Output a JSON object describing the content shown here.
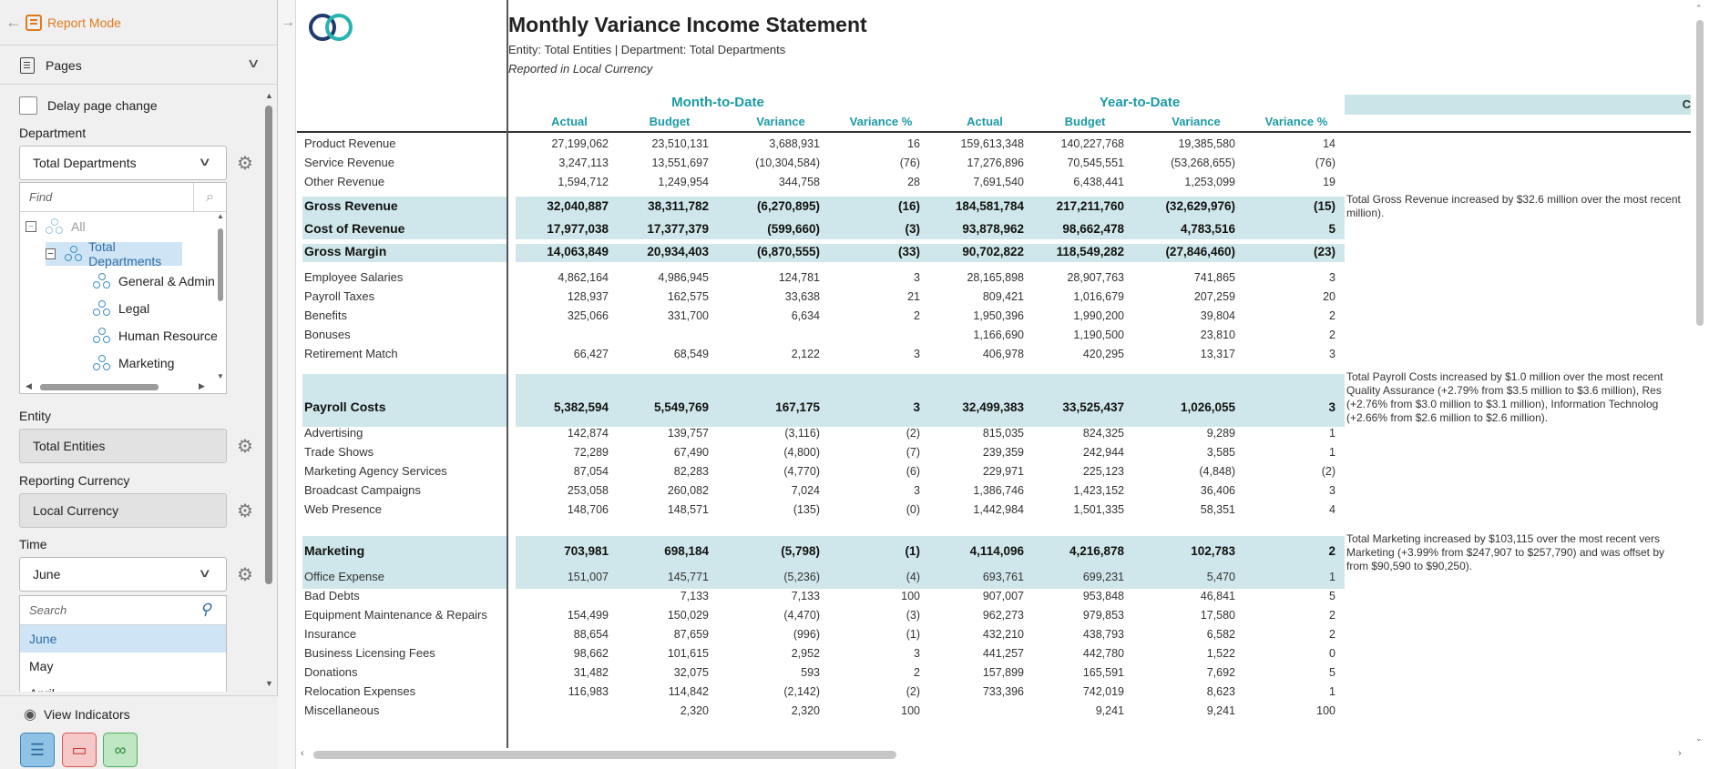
{
  "sidebar": {
    "report_mode_label": "Report Mode",
    "pages_label": "Pages",
    "delay_page_change_label": "Delay page change",
    "department_label": "Department",
    "department_value": "Total Departments",
    "find_placeholder": "Find",
    "tree": [
      {
        "label": "All",
        "toggle": "−"
      },
      {
        "label": "Total Departments",
        "toggle": "−"
      },
      {
        "label": "General & Admin"
      },
      {
        "label": "Legal"
      },
      {
        "label": "Human Resource"
      },
      {
        "label": "Marketing"
      }
    ],
    "entity_label": "Entity",
    "entity_value": "Total Entities",
    "reporting_currency_label": "Reporting Currency",
    "reporting_currency_value": "Local Currency",
    "time_label": "Time",
    "time_value": "June",
    "time_search_placeholder": "Search",
    "time_options": [
      "June",
      "May",
      "April"
    ],
    "view_indicators_label": "View Indicators"
  },
  "report": {
    "title": "Monthly Variance Income Statement",
    "subtitle": "Entity: Total Entities | Department: Total Departments",
    "currency_note": "Reported in Local Currency",
    "group_mtd": "Month-to-Date",
    "group_ytd": "Year-to-Date",
    "columns": [
      "Actual",
      "Budget",
      "Variance",
      "Variance %",
      "Actual",
      "Budget",
      "Variance",
      "Variance %"
    ],
    "comment_header": "C",
    "rows": [
      {
        "label": "Product Revenue",
        "v": [
          "27,199,062",
          "23,510,131",
          "3,688,931",
          "16",
          "159,613,348",
          "140,227,768",
          "19,385,580",
          "14"
        ]
      },
      {
        "label": "Service Revenue",
        "v": [
          "3,247,113",
          "13,551,697",
          "(10,304,584)",
          "(76)",
          "17,276,896",
          "70,545,551",
          "(53,268,655)",
          "(76)"
        ]
      },
      {
        "label": "Other Revenue",
        "v": [
          "1,594,712",
          "1,249,954",
          "344,758",
          "28",
          "7,691,540",
          "6,438,441",
          "1,253,099",
          "19"
        ]
      },
      {
        "label": "Gross Revenue",
        "bold": true,
        "v": [
          "32,040,887",
          "38,311,782",
          "(6,270,895)",
          "(16)",
          "184,581,784",
          "217,211,760",
          "(32,629,976)",
          "(15)"
        ],
        "comment": "Total Gross Revenue increased by $32.6 million over the most recent\nmillion)."
      },
      {
        "label": "Cost of Revenue",
        "bold": true,
        "v": [
          "17,977,038",
          "17,377,379",
          "(599,660)",
          "(3)",
          "93,878,962",
          "98,662,478",
          "4,783,516",
          "5"
        ]
      },
      {
        "label": "Gross Margin",
        "bold": true,
        "v": [
          "14,063,849",
          "20,934,403",
          "(6,870,555)",
          "(33)",
          "90,702,822",
          "118,549,282",
          "(27,846,460)",
          "(23)"
        ]
      },
      {
        "label": "Employee Salaries",
        "v": [
          "4,862,164",
          "4,986,945",
          "124,781",
          "3",
          "28,165,898",
          "28,907,763",
          "741,865",
          "3"
        ]
      },
      {
        "label": "Payroll Taxes",
        "v": [
          "128,937",
          "162,575",
          "33,638",
          "21",
          "809,421",
          "1,016,679",
          "207,259",
          "20"
        ]
      },
      {
        "label": "Benefits",
        "v": [
          "325,066",
          "331,700",
          "6,634",
          "2",
          "1,950,396",
          "1,990,200",
          "39,804",
          "2"
        ]
      },
      {
        "label": "Bonuses",
        "v": [
          "",
          "",
          "",
          "",
          "1,166,690",
          "1,190,500",
          "23,810",
          "2"
        ]
      },
      {
        "label": "Retirement Match",
        "v": [
          "66,427",
          "68,549",
          "2,122",
          "3",
          "406,978",
          "420,295",
          "13,317",
          "3"
        ]
      },
      {
        "label": "Payroll Costs",
        "bold": true,
        "v": [
          "5,382,594",
          "5,549,769",
          "167,175",
          "3",
          "32,499,383",
          "33,525,437",
          "1,026,055",
          "3"
        ],
        "comment": "Total Payroll Costs increased by $1.0 million over the most recent\nQuality Assurance (+2.79% from $3.5 million to $3.6 million), Res\n(+2.76% from $3.0 million to $3.1 million), Information Technolog\n(+2.66% from $2.6 million to $2.6 million)."
      },
      {
        "label": "Advertising",
        "v": [
          "142,874",
          "139,757",
          "(3,116)",
          "(2)",
          "815,035",
          "824,325",
          "9,289",
          "1"
        ]
      },
      {
        "label": "Trade Shows",
        "v": [
          "72,289",
          "67,490",
          "(4,800)",
          "(7)",
          "239,359",
          "242,944",
          "3,585",
          "1"
        ]
      },
      {
        "label": "Marketing Agency Services",
        "v": [
          "87,054",
          "82,283",
          "(4,770)",
          "(6)",
          "229,971",
          "225,123",
          "(4,848)",
          "(2)"
        ]
      },
      {
        "label": "Broadcast Campaigns",
        "v": [
          "253,058",
          "260,082",
          "7,024",
          "3",
          "1,386,746",
          "1,423,152",
          "36,406",
          "3"
        ]
      },
      {
        "label": "Web Presence",
        "v": [
          "148,706",
          "148,571",
          "(135)",
          "(0)",
          "1,442,984",
          "1,501,335",
          "58,351",
          "4"
        ]
      },
      {
        "label": "Marketing",
        "bold": true,
        "v": [
          "703,981",
          "698,184",
          "(5,798)",
          "(1)",
          "4,114,096",
          "4,216,878",
          "102,783",
          "2"
        ],
        "comment": "Total Marketing increased by $103,115 over the most recent vers\nMarketing (+3.99% from $247,907 to $257,790) and was offset by\nfrom $90,590 to $90,250)."
      },
      {
        "label": "Office Expense",
        "v": [
          "151,007",
          "145,771",
          "(5,236)",
          "(4)",
          "693,761",
          "699,231",
          "5,470",
          "1"
        ]
      },
      {
        "label": "Bad Debts",
        "v": [
          "",
          "7,133",
          "7,133",
          "100",
          "907,007",
          "953,848",
          "46,841",
          "5"
        ]
      },
      {
        "label": "Equipment Maintenance & Repairs",
        "v": [
          "154,499",
          "150,029",
          "(4,470)",
          "(3)",
          "962,273",
          "979,853",
          "17,580",
          "2"
        ]
      },
      {
        "label": "Insurance",
        "v": [
          "88,654",
          "87,659",
          "(996)",
          "(1)",
          "432,210",
          "438,793",
          "6,582",
          "2"
        ]
      },
      {
        "label": "Business Licensing Fees",
        "v": [
          "98,662",
          "101,615",
          "2,952",
          "3",
          "441,257",
          "442,780",
          "1,522",
          "0"
        ]
      },
      {
        "label": "Donations",
        "v": [
          "31,482",
          "32,075",
          "593",
          "2",
          "157,899",
          "165,591",
          "7,692",
          "5"
        ]
      },
      {
        "label": "Relocation Expenses",
        "v": [
          "116,983",
          "114,842",
          "(2,142)",
          "(2)",
          "733,396",
          "742,019",
          "8,623",
          "1"
        ]
      },
      {
        "label": "Miscellaneous",
        "v": [
          "",
          "2,320",
          "2,320",
          "100",
          "",
          "9,241",
          "9,241",
          "100"
        ]
      }
    ]
  },
  "colors": {
    "accent": "#e07a1e",
    "teal": "#1a9aa6",
    "band": "#cfe7ea",
    "selection": "#cfe4f5"
  }
}
